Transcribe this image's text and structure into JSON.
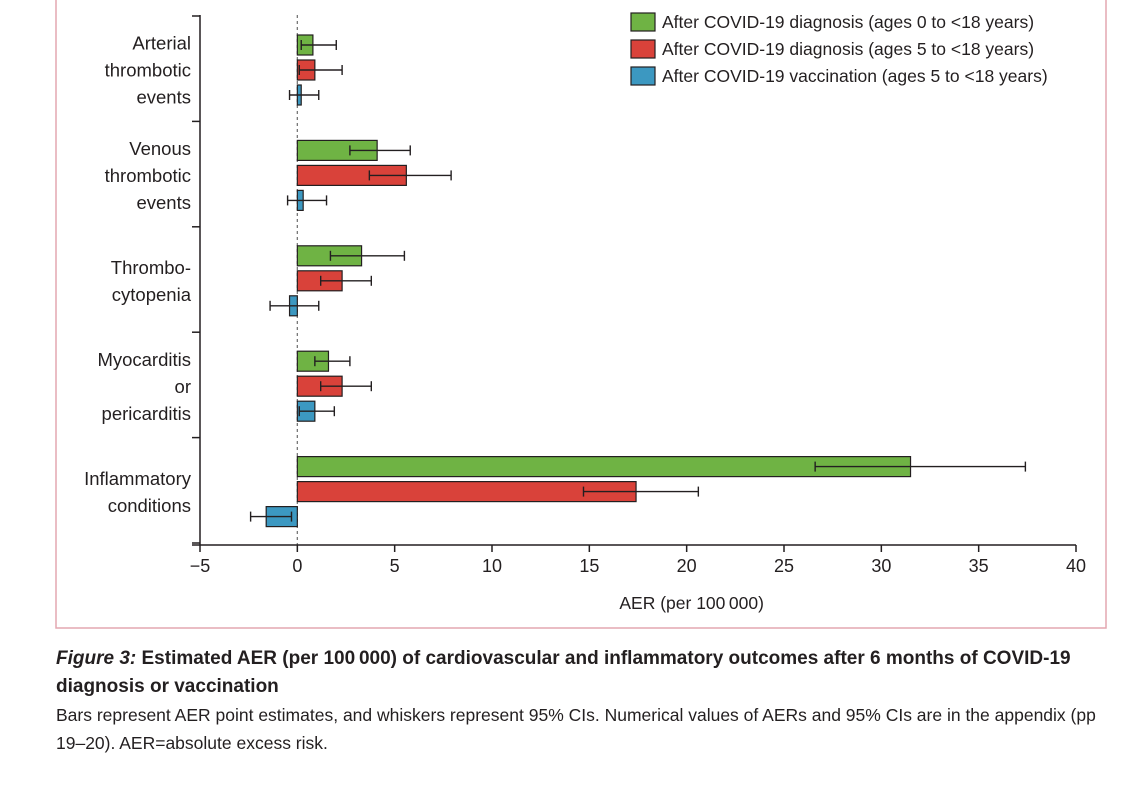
{
  "chart_data": {
    "type": "bar",
    "orientation": "horizontal",
    "categories": [
      [
        "Arterial",
        "thrombotic",
        "events"
      ],
      [
        "Venous",
        "thrombotic",
        "events"
      ],
      [
        "Thrombo-",
        "cytopenia"
      ],
      [
        "Myocarditis",
        "or",
        "pericarditis"
      ],
      [
        "Inflammatory",
        "conditions"
      ]
    ],
    "series": [
      {
        "name": "After COVID-19 diagnosis (ages 0 to <18 years)",
        "color": "#6fb344",
        "values": [
          0.8,
          4.1,
          3.3,
          1.6,
          31.5
        ],
        "ci_low": [
          0.2,
          2.7,
          1.7,
          0.9,
          26.6
        ],
        "ci_high": [
          2.0,
          5.8,
          5.5,
          2.7,
          37.4
        ]
      },
      {
        "name": "After COVID-19 diagnosis (ages 5 to <18 years)",
        "color": "#d9423a",
        "values": [
          0.9,
          5.6,
          2.3,
          2.3,
          17.4
        ],
        "ci_low": [
          0.1,
          3.7,
          1.2,
          1.2,
          14.7
        ],
        "ci_high": [
          2.3,
          7.9,
          3.8,
          3.8,
          20.6
        ]
      },
      {
        "name": "After COVID-19 vaccination (ages 5 to <18 years)",
        "color": "#3c98c1",
        "values": [
          0.2,
          0.3,
          -0.4,
          0.9,
          -1.6
        ],
        "ci_low": [
          -0.4,
          -0.5,
          -1.4,
          0.1,
          -2.4
        ],
        "ci_high": [
          1.1,
          1.5,
          1.1,
          1.9,
          -0.3
        ]
      }
    ],
    "xlabel": "AER (per 100 000)",
    "xlim": [
      -5,
      40
    ],
    "xticks": [
      -5,
      0,
      5,
      10,
      15,
      20,
      25,
      30,
      35,
      40
    ],
    "xtick_labels": [
      "−5",
      "0",
      "5",
      "10",
      "15",
      "20",
      "25",
      "30",
      "35",
      "40"
    ],
    "reference_line": 0,
    "legend_position": "top-right",
    "grid": false
  },
  "caption": {
    "figure_label": "Figure 3:",
    "title": " Estimated AER (per 100 000) of cardiovascular and inflammatory outcomes after 6 months of COVID-19 diagnosis or vaccination",
    "text": "Bars represent AER point estimates, and whiskers represent 95% CIs. Numerical values of AERs and 95% CIs are in the appendix (pp 19–20). AER=absolute excess risk."
  },
  "colors": {
    "frame_border": "#e3a7b1",
    "axis": "#231f20",
    "reference_line": "#777777"
  }
}
